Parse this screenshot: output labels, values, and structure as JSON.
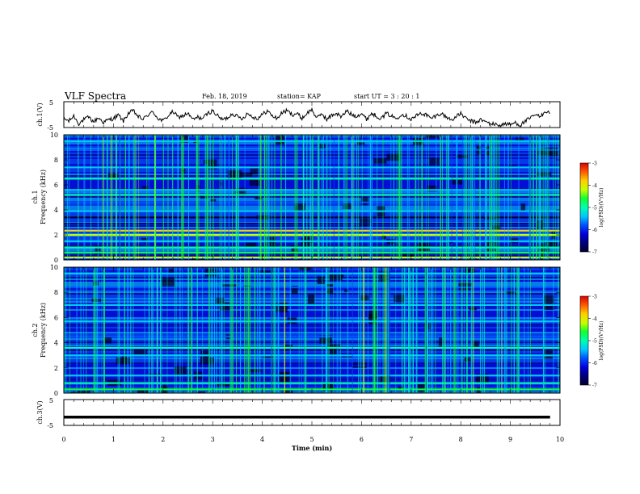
{
  "header": {
    "title": "VLF Spectra",
    "date": "Feb. 18, 2019",
    "station": "station= KAP",
    "start": "start  UT =   3  : 20 : 1"
  },
  "colors": {
    "line": "#000000",
    "colormap": [
      "#000033",
      "#00007a",
      "#0000dd",
      "#0050ff",
      "#00c8ff",
      "#00ffb0",
      "#10ff30",
      "#c8ff00",
      "#ffd000",
      "#ff5a00",
      "#dd0000"
    ]
  },
  "chart_data": [
    {
      "id": "ch1-waveform",
      "type": "line",
      "ylabel": "ch.1(V)",
      "yticks": [
        "5",
        "-5"
      ],
      "ylim": [
        -5,
        5
      ],
      "xlim": [
        0,
        10
      ],
      "series": [
        {
          "x": [
            0.0,
            0.1,
            0.2,
            0.3,
            0.4,
            0.5,
            0.6,
            0.7,
            0.8,
            0.9,
            1.0,
            1.1,
            1.2,
            1.3,
            1.4,
            1.5,
            1.6,
            1.7,
            1.8,
            1.9,
            2.0,
            2.1,
            2.2,
            2.3,
            2.4,
            2.5,
            2.6,
            2.7,
            2.8,
            2.9,
            3.0,
            3.1,
            3.2,
            3.3,
            3.4,
            3.5,
            3.6,
            3.7,
            3.8,
            3.9,
            4.0,
            4.1,
            4.2,
            4.3,
            4.4,
            4.5,
            4.6,
            4.7,
            4.8,
            4.9,
            5.0,
            5.1,
            5.2,
            5.3,
            5.4,
            5.5,
            5.6,
            5.7,
            5.8,
            5.9,
            6.0,
            6.1,
            6.2,
            6.3,
            6.4,
            6.5,
            6.6,
            6.7,
            6.8,
            6.9,
            7.0,
            7.1,
            7.2,
            7.3,
            7.4,
            7.5,
            7.6,
            7.7,
            7.8,
            7.9,
            8.0,
            8.1,
            8.2,
            8.3,
            8.4,
            8.5,
            8.6,
            8.7,
            8.8,
            8.9,
            9.0,
            9.1,
            9.2,
            9.3,
            9.4,
            9.5,
            9.6,
            9.7,
            9.8
          ],
          "values": [
            -1.5,
            -2.5,
            -0.5,
            -3.5,
            -2.0,
            -1.0,
            -2.8,
            -1.2,
            -3.0,
            -2.0,
            -1.5,
            -0.2,
            -2.5,
            0.5,
            1.5,
            -0.8,
            -1.8,
            0.0,
            1.0,
            -1.5,
            -2.5,
            -0.5,
            1.2,
            -1.0,
            -0.5,
            0.5,
            -2.0,
            -1.0,
            -1.5,
            0.5,
            1.5,
            -0.5,
            -2.0,
            -1.2,
            0.5,
            -0.8,
            -1.5,
            0.5,
            -0.8,
            -1.5,
            0.0,
            1.5,
            -0.5,
            -1.5,
            0.8,
            1.5,
            0.0,
            0.5,
            -1.5,
            0.5,
            2.0,
            -1.5,
            0.5,
            -2.0,
            -0.2,
            0.5,
            -1.0,
            1.5,
            0.0,
            -0.5,
            0.5,
            -1.8,
            0.5,
            -0.5,
            -1.5,
            0.5,
            -0.5,
            -1.5,
            0.2,
            -0.5,
            -1.8,
            -0.5,
            0.5,
            0.0,
            -1.5,
            -0.5,
            0.5,
            -0.8,
            -2.0,
            -1.0,
            0.5,
            -1.5,
            -2.5,
            -3.0,
            -2.0,
            -2.8,
            -3.5,
            -3.8,
            -4.2,
            -3.5,
            -4.0,
            -3.0,
            -4.2,
            -2.5,
            -1.5,
            0.0,
            -1.0,
            1.5,
            0.5
          ]
        }
      ]
    },
    {
      "id": "ch1-spectrogram",
      "type": "heatmap",
      "ylabel": "ch.1",
      "ylabel2": "Frequency (kHz)",
      "yticks": [
        "0",
        "2",
        "4",
        "6",
        "8",
        "10"
      ],
      "ylim": [
        0,
        10
      ],
      "xlim": [
        0,
        10
      ],
      "colorbar": {
        "label": "log(PSD)(V²/Hz)",
        "ticks": [
          "-3",
          "-4",
          "-5",
          "-6",
          "-7"
        ],
        "range": [
          -7,
          -3
        ]
      },
      "bands": [
        {
          "f": 0.2,
          "level": -4.2
        },
        {
          "f": 0.6,
          "level": -4.6
        },
        {
          "f": 1.0,
          "level": -5.0
        },
        {
          "f": 1.5,
          "level": -5.2
        },
        {
          "f": 2.0,
          "level": -4.4
        },
        {
          "f": 2.35,
          "level": -4.0
        },
        {
          "f": 2.9,
          "level": -6.6
        },
        {
          "f": 3.4,
          "level": -6.8
        },
        {
          "f": 3.9,
          "level": -5.4
        },
        {
          "f": 4.6,
          "level": -5.6
        },
        {
          "f": 5.2,
          "level": -5.0
        },
        {
          "f": 5.6,
          "level": -5.2
        },
        {
          "f": 6.5,
          "level": -5.0
        },
        {
          "f": 7.4,
          "level": -5.4
        },
        {
          "f": 8.8,
          "level": -5.6
        },
        {
          "f": 9.5,
          "level": -5.3
        }
      ]
    },
    {
      "id": "ch2-spectrogram",
      "type": "heatmap",
      "ylabel": "ch.2",
      "ylabel2": "Frequency (kHz)",
      "yticks": [
        "0",
        "2",
        "4",
        "6",
        "8",
        "10"
      ],
      "ylim": [
        0,
        10
      ],
      "xlim": [
        0,
        10
      ],
      "colorbar": {
        "label": "log(PSD)(V²/Hz)",
        "ticks": [
          "-3",
          "-4",
          "-5",
          "-6",
          "-7"
        ],
        "range": [
          -7,
          -3
        ]
      },
      "bands": [
        {
          "f": 0.3,
          "level": -4.6
        },
        {
          "f": 0.8,
          "level": -5.0
        },
        {
          "f": 1.4,
          "level": -5.4
        },
        {
          "f": 2.2,
          "level": -6.2
        },
        {
          "f": 3.0,
          "level": -5.2
        },
        {
          "f": 3.6,
          "level": -5.0
        },
        {
          "f": 4.5,
          "level": -5.6
        },
        {
          "f": 5.7,
          "level": -5.4
        },
        {
          "f": 7.0,
          "level": -5.4
        },
        {
          "f": 8.4,
          "level": -5.8
        },
        {
          "f": 9.5,
          "level": -5.2
        }
      ]
    },
    {
      "id": "ch3-waveform",
      "type": "line",
      "ylabel": "ch.3(V)",
      "yticks": [
        "5",
        "-5"
      ],
      "ylim": [
        -5,
        5
      ],
      "xlim": [
        0,
        10
      ],
      "xlabel": "Time  (min)",
      "xticks": [
        "0",
        "1",
        "2",
        "3",
        "4",
        "5",
        "6",
        "7",
        "8",
        "9",
        "10"
      ],
      "series": [
        {
          "x": [
            0.0,
            9.8
          ],
          "values": [
            -1.8,
            -1.8
          ]
        }
      ]
    }
  ]
}
